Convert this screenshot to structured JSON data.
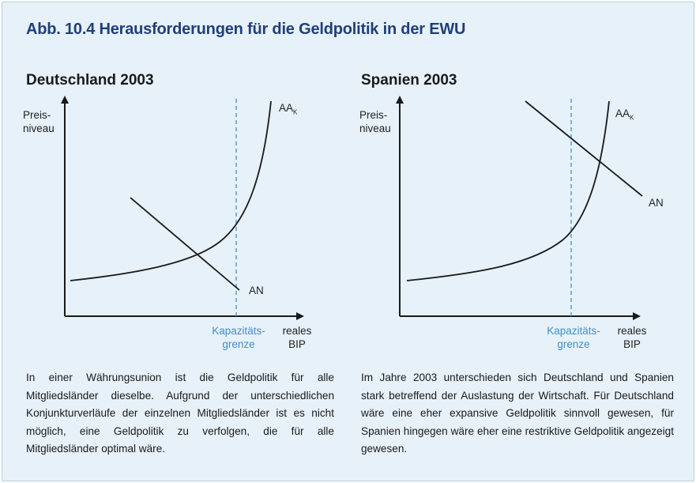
{
  "figure": {
    "title": "Abb. 10.4  Herausforderungen für die Geldpolitik in der EWU"
  },
  "left": {
    "title": "Deutschland 2003",
    "y_axis_label_line1": "Preis-",
    "y_axis_label_line2": "niveau",
    "supply_label": "AA",
    "supply_label_sub": "K",
    "demand_label": "AN",
    "capacity_label_line1": "Kapazitäts-",
    "capacity_label_line2": "grenze",
    "x_axis_label_line1": "reales",
    "x_axis_label_line2": "BIP",
    "caption": "In einer Währungsunion ist die Geldpolitik für alle Mitgliedsländer dieselbe. Aufgrund der unterschiedlichen Konjunkturverläufe der einzelnen Mitgliedsländer ist es nicht möglich, eine Geldpolitik zu verfolgen, die für alle Mitgliedsländer optimal wäre."
  },
  "right": {
    "title": "Spanien 2003",
    "y_axis_label_line1": "Preis-",
    "y_axis_label_line2": "niveau",
    "supply_label": "AA",
    "supply_label_sub": "K",
    "demand_label": "AN",
    "capacity_label_line1": "Kapazitäts-",
    "capacity_label_line2": "grenze",
    "x_axis_label_line1": "reales",
    "x_axis_label_line2": "BIP",
    "caption": "Im Jahre 2003 unterschieden sich Deutschland und Spanien stark betreffend der Auslastung der Wirtschaft. Für Deutschland wäre eine eher expansive Geldpolitik sinnvoll gewesen, für Spanien hingegen wäre eher eine restriktive Geldpolitik angezeigt gewesen."
  },
  "colors": {
    "frame_background": "#e7f1f9",
    "title": "#1f3f7a",
    "capacity_line": "#3f8fce",
    "curves": "#1a1a1a"
  }
}
